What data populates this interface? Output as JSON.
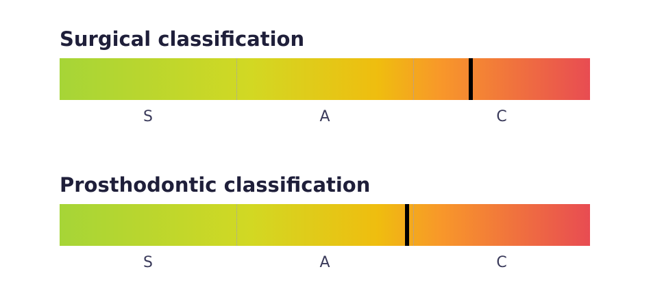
{
  "sections": [
    {
      "title": "Surgical classification",
      "categories": [
        "S",
        "A",
        "C"
      ],
      "value": 0.775
    },
    {
      "title": "Prosthodontic classification",
      "categories": [
        "S",
        "A",
        "C"
      ],
      "value": 0.655
    }
  ]
}
